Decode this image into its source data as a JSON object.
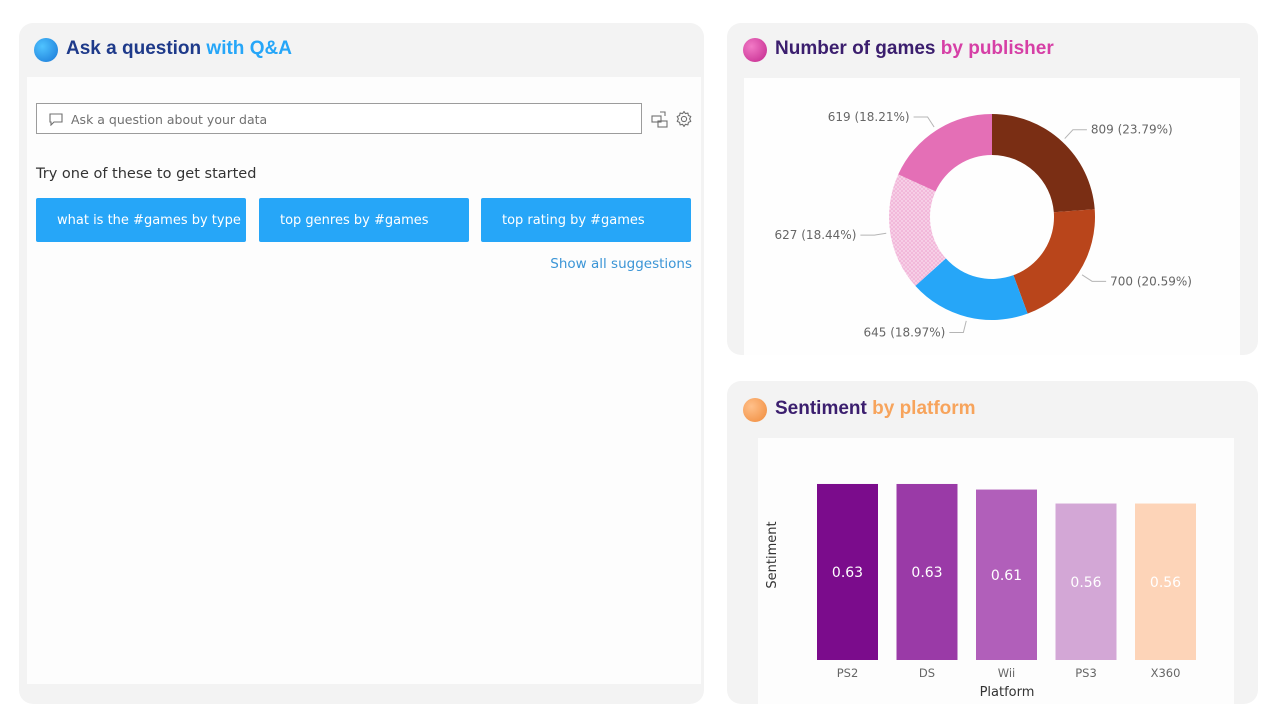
{
  "qa": {
    "title_part1": "Ask a question ",
    "title_part2": "with Q&A",
    "placeholder": "Ask a question about your data",
    "try_text": "Try one of these to get started",
    "suggestions": [
      "what is the #games by type",
      "top genres by #games",
      "top rating by #games"
    ],
    "show_all": "Show all suggestions",
    "icons": [
      "chat-bubble-icon",
      "convert-to-visual-icon",
      "settings-gear-icon"
    ],
    "colors": {
      "title_dark": "#1e3a8a",
      "title_light": "#26a6f8",
      "button": "#26a6f8",
      "link": "#3b95d6"
    }
  },
  "publisher": {
    "title_part1": "Number of games ",
    "title_part2": "by publisher",
    "colors": {
      "title_dark": "#3b1e6e",
      "title_light": "#d63fa6",
      "orb": "#d63f9f"
    }
  },
  "sentiment": {
    "title_part1": "Sentiment ",
    "title_part2": "by platform",
    "colors": {
      "title_dark": "#3b1e6e",
      "title_light": "#f7a45c",
      "orb": "#f7994f"
    }
  },
  "chart_data": [
    {
      "type": "pie",
      "title": "Number of games by publisher",
      "values": [
        809,
        700,
        645,
        627,
        619
      ],
      "percent_labels": [
        "23.79%",
        "20.59%",
        "18.97%",
        "18.44%",
        "18.21%"
      ],
      "labels": [
        "809 (23.79%)",
        "700 (20.59%)",
        "645 (18.97%)",
        "627 (18.44%)",
        "619 (18.21%)"
      ],
      "colors": [
        "#7a2e14",
        "#b9451b",
        "#26a6f8",
        "#f2b8da",
        "#e46fb6"
      ],
      "donut": true
    },
    {
      "type": "bar",
      "title": "Sentiment by platform",
      "categories": [
        "PS2",
        "DS",
        "Wii",
        "PS3",
        "X360"
      ],
      "values": [
        0.63,
        0.63,
        0.61,
        0.56,
        0.56
      ],
      "value_labels": [
        "0.63",
        "0.63",
        "0.61",
        "0.56",
        "0.56"
      ],
      "colors": [
        "#7b0c8c",
        "#9a3aa7",
        "#b15fba",
        "#d3a7d6",
        "#fdd4b8"
      ],
      "xlabel": "Platform",
      "ylabel": "Sentiment",
      "ylim": [
        0,
        0.68
      ]
    }
  ]
}
